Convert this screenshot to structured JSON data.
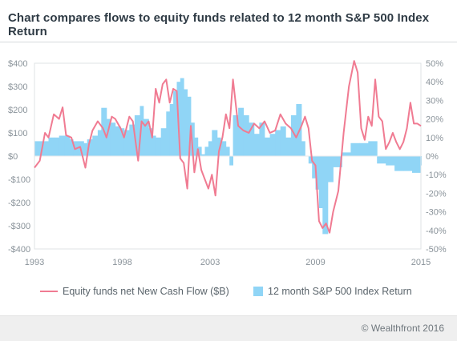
{
  "chart_data": {
    "type": "bar+line",
    "title": "Chart compares flows to equity funds related to 12 month S&P 500 Index Return",
    "x_range": [
      1993,
      2015
    ],
    "x_ticks": [
      "1993",
      "1998",
      "2003",
      "2009",
      "2015"
    ],
    "y_left": {
      "range": [
        -400,
        400
      ],
      "ticks": [
        "$400",
        "$300",
        "$200",
        "$100",
        "$0",
        "-$100",
        "-$200",
        "-$300",
        "-$400"
      ]
    },
    "y_right": {
      "range": [
        -50,
        50
      ],
      "ticks": [
        "50%",
        "40%",
        "30%",
        "20%",
        "10%",
        "0%",
        "-10%",
        "-20%",
        "-30%",
        "-40%",
        "-50%"
      ]
    },
    "series": [
      {
        "name": "Equity funds net New Cash Flow ($B)",
        "type": "line",
        "axis": "left",
        "color": "#f07b92",
        "x": [
          1993.0,
          1993.3,
          1993.6,
          1993.8,
          1994.1,
          1994.4,
          1994.6,
          1994.8,
          1995.1,
          1995.3,
          1995.6,
          1995.9,
          1996.1,
          1996.3,
          1996.6,
          1996.9,
          1997.1,
          1997.4,
          1997.6,
          1997.9,
          1998.1,
          1998.4,
          1998.6,
          1998.9,
          1999.1,
          1999.3,
          1999.5,
          1999.7,
          1999.9,
          2000.1,
          2000.3,
          2000.5,
          2000.7,
          2000.9,
          2001.1,
          2001.3,
          2001.5,
          2001.7,
          2001.9,
          2002.1,
          2002.3,
          2002.5,
          2002.7,
          2002.9,
          2003.1,
          2003.3,
          2003.5,
          2003.7,
          2003.9,
          2004.1,
          2004.3,
          2004.6,
          2004.9,
          2005.2,
          2005.5,
          2005.8,
          2006.1,
          2006.4,
          2006.7,
          2007.0,
          2007.3,
          2007.6,
          2007.9,
          2008.2,
          2008.4,
          2008.6,
          2008.8,
          2009.0,
          2009.2,
          2009.4,
          2009.6,
          2009.8,
          2010.0,
          2010.3,
          2010.6,
          2010.9,
          2011.2,
          2011.4,
          2011.6,
          2011.8,
          2012.0,
          2012.2,
          2012.4,
          2012.6,
          2012.8,
          2013.0,
          2013.2,
          2013.4,
          2013.6,
          2013.8,
          2014.0,
          2014.2,
          2014.4,
          2014.6,
          2014.8,
          2015.0
        ],
        "values": [
          -50,
          -20,
          100,
          80,
          180,
          160,
          210,
          90,
          80,
          30,
          40,
          -50,
          50,
          110,
          150,
          120,
          80,
          170,
          160,
          120,
          80,
          170,
          150,
          -20,
          150,
          130,
          150,
          80,
          290,
          230,
          310,
          330,
          230,
          290,
          280,
          -10,
          -30,
          -140,
          130,
          -70,
          30,
          -60,
          -100,
          -140,
          -80,
          -170,
          20,
          80,
          180,
          120,
          330,
          130,
          110,
          100,
          140,
          120,
          150,
          100,
          110,
          180,
          140,
          120,
          80,
          130,
          170,
          120,
          -20,
          -40,
          -280,
          -310,
          -290,
          -330,
          -240,
          -150,
          100,
          300,
          410,
          360,
          120,
          70,
          170,
          130,
          330,
          170,
          150,
          30,
          60,
          100,
          60,
          30,
          60,
          120,
          230,
          140,
          140,
          130
        ]
      },
      {
        "name": "12 month S&P 500 Index Return",
        "type": "bar",
        "axis": "right",
        "color": "#90d5f6",
        "x": [
          1993.0,
          1993.4,
          1993.8,
          1994.1,
          1994.4,
          1994.7,
          1995.0,
          1995.2,
          1995.5,
          1995.8,
          1996.0,
          1996.3,
          1996.6,
          1996.8,
          1997.1,
          1997.3,
          1997.6,
          1997.9,
          1998.1,
          1998.4,
          1998.7,
          1999.0,
          1999.2,
          1999.5,
          1999.7,
          1999.9,
          2000.2,
          2000.5,
          2000.7,
          2000.9,
          2001.1,
          2001.3,
          2001.5,
          2001.7,
          2001.9,
          2002.1,
          2002.3,
          2002.5,
          2002.7,
          2002.9,
          2003.1,
          2003.4,
          2003.6,
          2003.9,
          2004.1,
          2004.3,
          2004.6,
          2004.9,
          2005.2,
          2005.5,
          2005.8,
          2006.1,
          2006.4,
          2006.7,
          2007.0,
          2007.3,
          2007.6,
          2007.9,
          2008.2,
          2008.4,
          2008.6,
          2008.8,
          2009.0,
          2009.2,
          2009.4,
          2009.7,
          2010.0,
          2010.5,
          2011.0,
          2011.5,
          2012.0,
          2012.5,
          2013.0,
          2013.5,
          2014.0,
          2014.5,
          2015.0
        ],
        "values": [
          8,
          8,
          10,
          10,
          11,
          11,
          9,
          8,
          8,
          7,
          9,
          11,
          14,
          26,
          20,
          18,
          16,
          15,
          14,
          17,
          22,
          27,
          20,
          15,
          11,
          10,
          15,
          24,
          28,
          35,
          40,
          42,
          36,
          32,
          18,
          10,
          5,
          1,
          5,
          8,
          14,
          10,
          8,
          5,
          -5,
          22,
          26,
          22,
          18,
          12,
          18,
          10,
          12,
          14,
          16,
          10,
          22,
          28,
          8,
          0,
          -4,
          -12,
          -18,
          -28,
          -42,
          -14,
          -6,
          2,
          7,
          7,
          8,
          -4,
          -5,
          -8,
          -8,
          -9,
          -5
        ]
      }
    ],
    "legend": [
      {
        "label": "Equity funds net New Cash Flow ($B)",
        "marker": "line"
      },
      {
        "label": "12 month S&P 500 Index Return",
        "marker": "box"
      }
    ],
    "legend_position": "bottom",
    "grid": false
  },
  "footer": {
    "credit": "© Wealthfront 2016"
  }
}
